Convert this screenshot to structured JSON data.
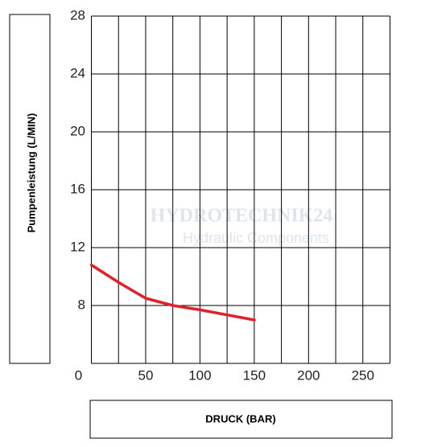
{
  "chart_data": {
    "type": "line",
    "x_label": "DRUCK (BAR)",
    "y_label": "Pumpenleistung (L/MIN)",
    "watermark": [
      "HYDROTECHNIK24",
      "Hydraulic Components"
    ],
    "x": [
      0,
      25,
      50,
      75,
      100,
      125,
      150
    ],
    "series": [
      {
        "name": null,
        "color": "#e0202a",
        "values": [
          10.8,
          9.6,
          8.5,
          8.0,
          7.7,
          7.35,
          7.0
        ]
      }
    ],
    "xlim": [
      0,
      275
    ],
    "xticks": [
      0,
      50,
      100,
      150,
      200,
      250
    ],
    "x_minor_grid": [
      25,
      75,
      125,
      175,
      225,
      275
    ],
    "ylim": [
      4,
      28
    ],
    "yticks": [
      8,
      12,
      16,
      20,
      24,
      28
    ],
    "y_minor_grid": [
      4
    ],
    "grid": true
  }
}
